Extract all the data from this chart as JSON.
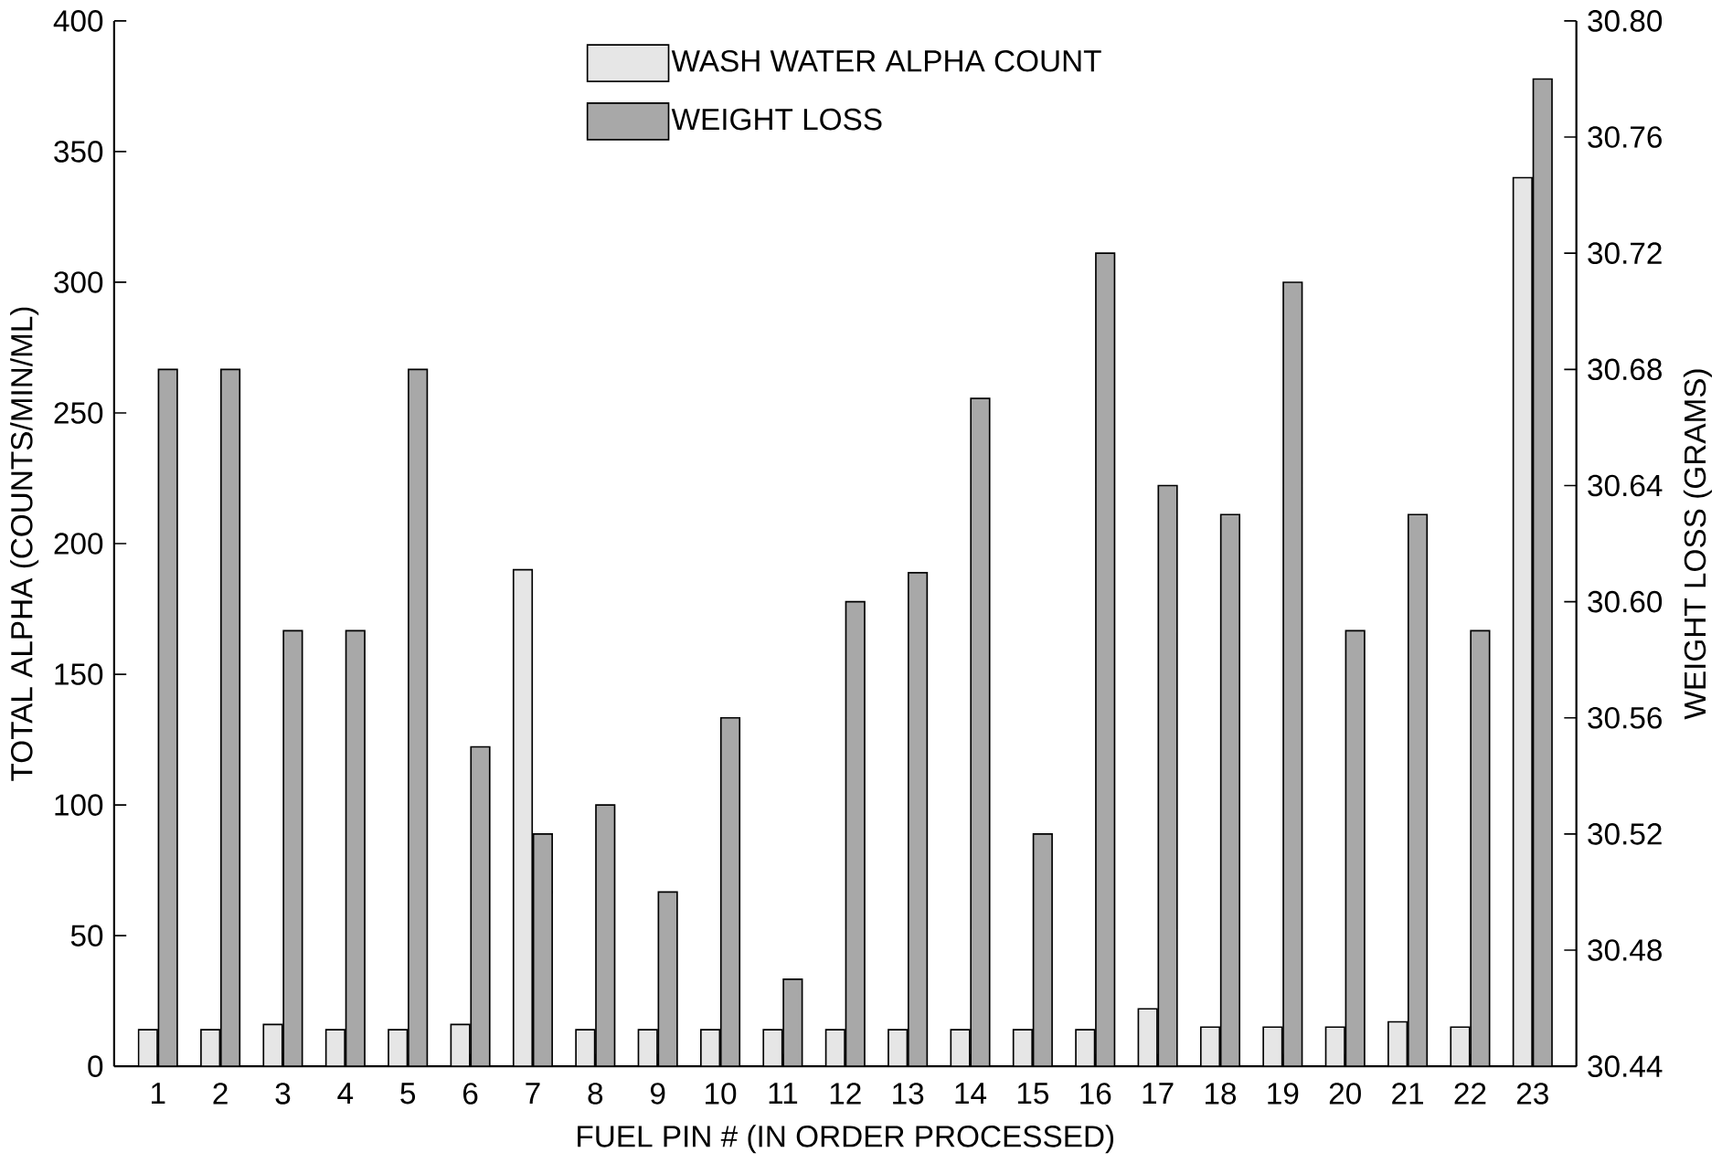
{
  "chart_data": {
    "type": "bar",
    "xlabel": "FUEL PIN # (IN ORDER PROCESSED)",
    "ylabel": "TOTAL ALPHA (COUNTS/MIN/ML)",
    "y2label": "WEIGHT LOSS (GRAMS)",
    "categories": [
      "1",
      "2",
      "3",
      "4",
      "5",
      "6",
      "7",
      "8",
      "9",
      "10",
      "11",
      "12",
      "13",
      "14",
      "15",
      "16",
      "17",
      "18",
      "19",
      "20",
      "21",
      "22",
      "23"
    ],
    "series": [
      {
        "name": "WASH WATER ALPHA COUNT",
        "color": "#e6e6e6",
        "values": [
          14,
          14,
          16,
          14,
          14,
          16,
          190,
          14,
          14,
          14,
          14,
          14,
          14,
          14,
          14,
          14,
          22,
          15,
          15,
          15,
          17,
          15,
          340
        ]
      },
      {
        "name": "WEIGHT LOSS",
        "color": "#a8a8a8",
        "axis": "y2",
        "values": [
          30.68,
          30.68,
          30.59,
          30.59,
          30.68,
          30.55,
          30.52,
          30.53,
          30.5,
          30.56,
          30.47,
          30.6,
          30.61,
          30.67,
          30.52,
          30.72,
          30.64,
          30.63,
          30.71,
          30.59,
          30.63,
          30.59,
          30.78
        ]
      }
    ],
    "ylim": [
      0,
      400
    ],
    "yticks": [
      0,
      50,
      100,
      150,
      200,
      250,
      300,
      350,
      400
    ],
    "y2lim": [
      30.44,
      30.8
    ],
    "y2ticks": [
      {
        "value": 30.44,
        "label": "30.44"
      },
      {
        "value": 30.48,
        "label": "30.48"
      },
      {
        "value": 30.52,
        "label": "30.52"
      },
      {
        "value": 30.56,
        "label": "30.56"
      },
      {
        "value": 30.6,
        "label": "30.60"
      },
      {
        "value": 30.64,
        "label": "30.64"
      },
      {
        "value": 30.68,
        "label": "30.68"
      },
      {
        "value": 30.72,
        "label": "30.72"
      },
      {
        "value": 30.76,
        "label": "30.76"
      },
      {
        "value": 30.8,
        "label": "30.80"
      }
    ],
    "legend": "top",
    "grid": false
  }
}
